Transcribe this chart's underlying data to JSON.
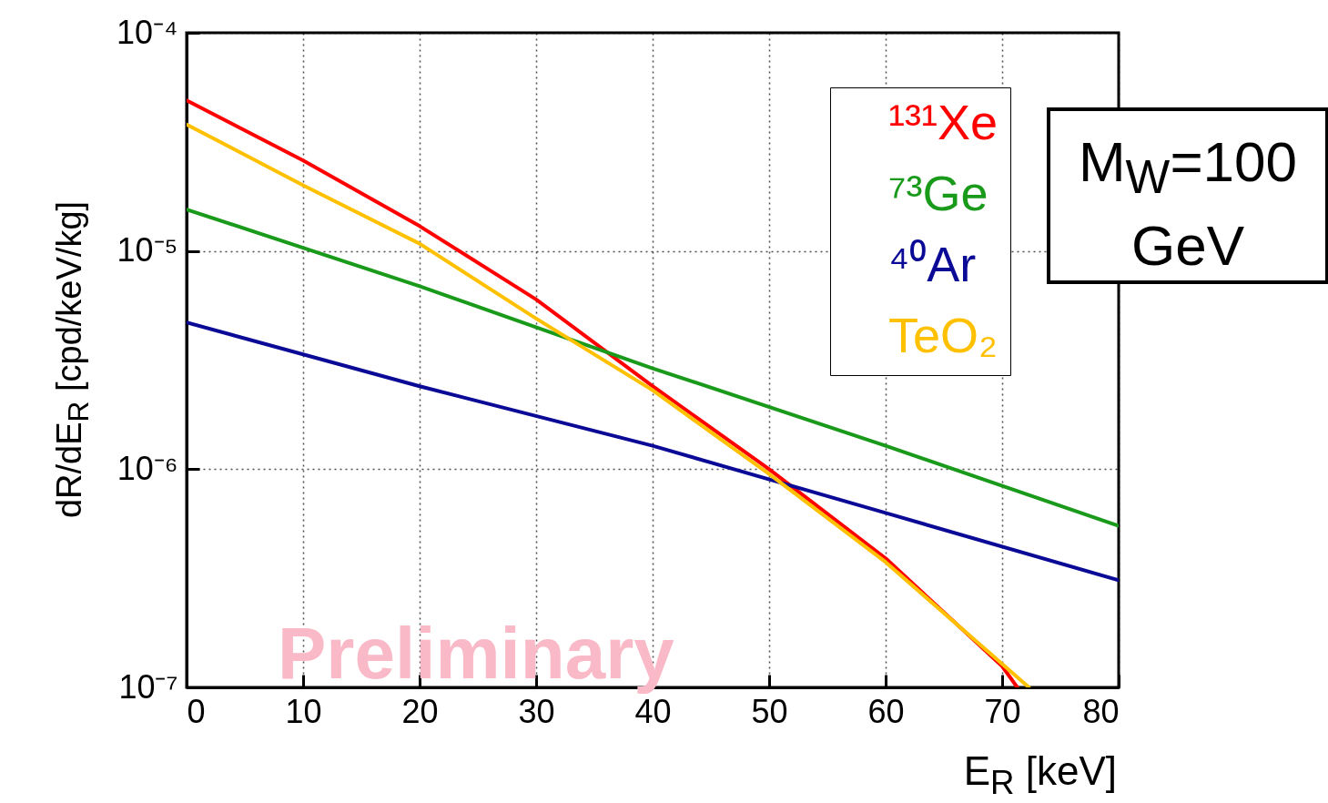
{
  "chart_data": {
    "type": "line",
    "xlabel": "E$_{R}$ [keV]",
    "ylabel": "dR/dE$_{R}$ [cpd/keV/kg]",
    "xlim": [
      0,
      80
    ],
    "xticks": [
      0,
      10,
      20,
      30,
      40,
      50,
      60,
      70,
      80
    ],
    "ylim": [
      1e-07,
      0.0001
    ],
    "yticks": [
      {
        "value": 1e-07,
        "label": "10⁻⁷"
      },
      {
        "value": 1e-06,
        "label": "10⁻⁶"
      },
      {
        "value": 1e-05,
        "label": "10⁻⁵"
      },
      {
        "value": 0.0001,
        "label": "10⁻⁴"
      }
    ],
    "log": "y",
    "grid": true,
    "legend": "top right",
    "marker": "none",
    "line_style": "solid",
    "series": [
      {
        "name": "¹³¹Xe",
        "color": "#ff0000",
        "x": [
          0,
          10,
          20,
          30,
          40,
          50,
          60,
          70,
          71.3
        ],
        "values": [
          4.9e-05,
          2.6e-05,
          1.3e-05,
          6e-06,
          2.4e-06,
          1e-06,
          3.9e-07,
          1.25e-07,
          1e-07
        ]
      },
      {
        "name": "⁷³Ge",
        "color": "#1a9a1a",
        "x": [
          0,
          20,
          40,
          60,
          80
        ],
        "values": [
          1.55e-05,
          6.9e-06,
          2.9e-06,
          1.28e-06,
          5.5e-07
        ]
      },
      {
        "name": "⁴⁰Ar",
        "color": "#0a0a96",
        "x": [
          0,
          20,
          40,
          60,
          80
        ],
        "values": [
          4.7e-06,
          2.4e-06,
          1.28e-06,
          6.3e-07,
          3.1e-07
        ]
      },
      {
        "name": "TeO₂",
        "color": "#ffc000",
        "x": [
          0,
          10,
          20,
          30,
          40,
          50,
          60,
          70,
          72.3
        ],
        "values": [
          3.8e-05,
          2e-05,
          1.08e-05,
          4.9e-06,
          2.3e-06,
          9.5e-07,
          3.75e-07,
          1.28e-07,
          1e-07
        ]
      }
    ],
    "annotations": [
      "M$_{W}$=100 GeV",
      "Preliminary"
    ]
  }
}
